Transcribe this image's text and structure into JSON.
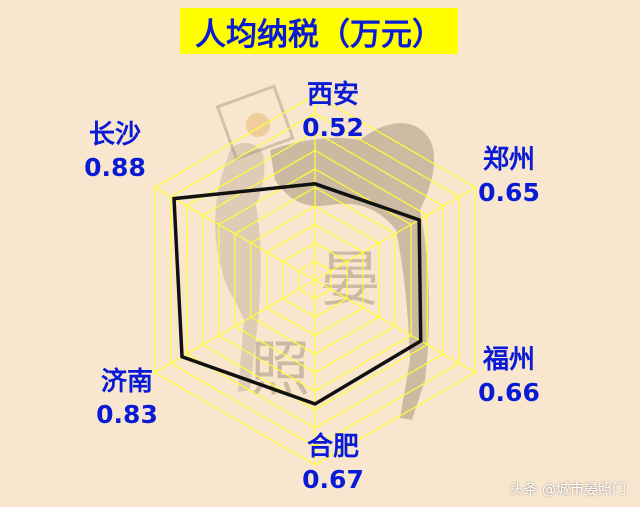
{
  "colors": {
    "background": "#f9e6cf",
    "title_bg": "#ffff00",
    "text_blue": "#0a1bd6",
    "grid_yellow": "#ffff33",
    "series_line": "#111111"
  },
  "chart_data": {
    "type": "radar",
    "title": "人均纳税（万元）",
    "axes": [
      "西安",
      "郑州",
      "福州",
      "合肥",
      "济南",
      "长沙"
    ],
    "values": [
      0.52,
      0.65,
      0.66,
      0.67,
      0.83,
      0.88
    ],
    "value_labels": [
      "0.52",
      "0.65",
      "0.66",
      "0.67",
      "0.83",
      "0.88"
    ],
    "rlim": [
      0,
      1
    ],
    "grid": true,
    "grid_rings": 10,
    "legend": "none"
  },
  "watermark": {
    "text": "头条 @城市晏照门"
  },
  "decorations": {
    "seal_text": "晏照",
    "icon_names": [
      "dancer-silhouette-image",
      "seal-logo"
    ]
  }
}
